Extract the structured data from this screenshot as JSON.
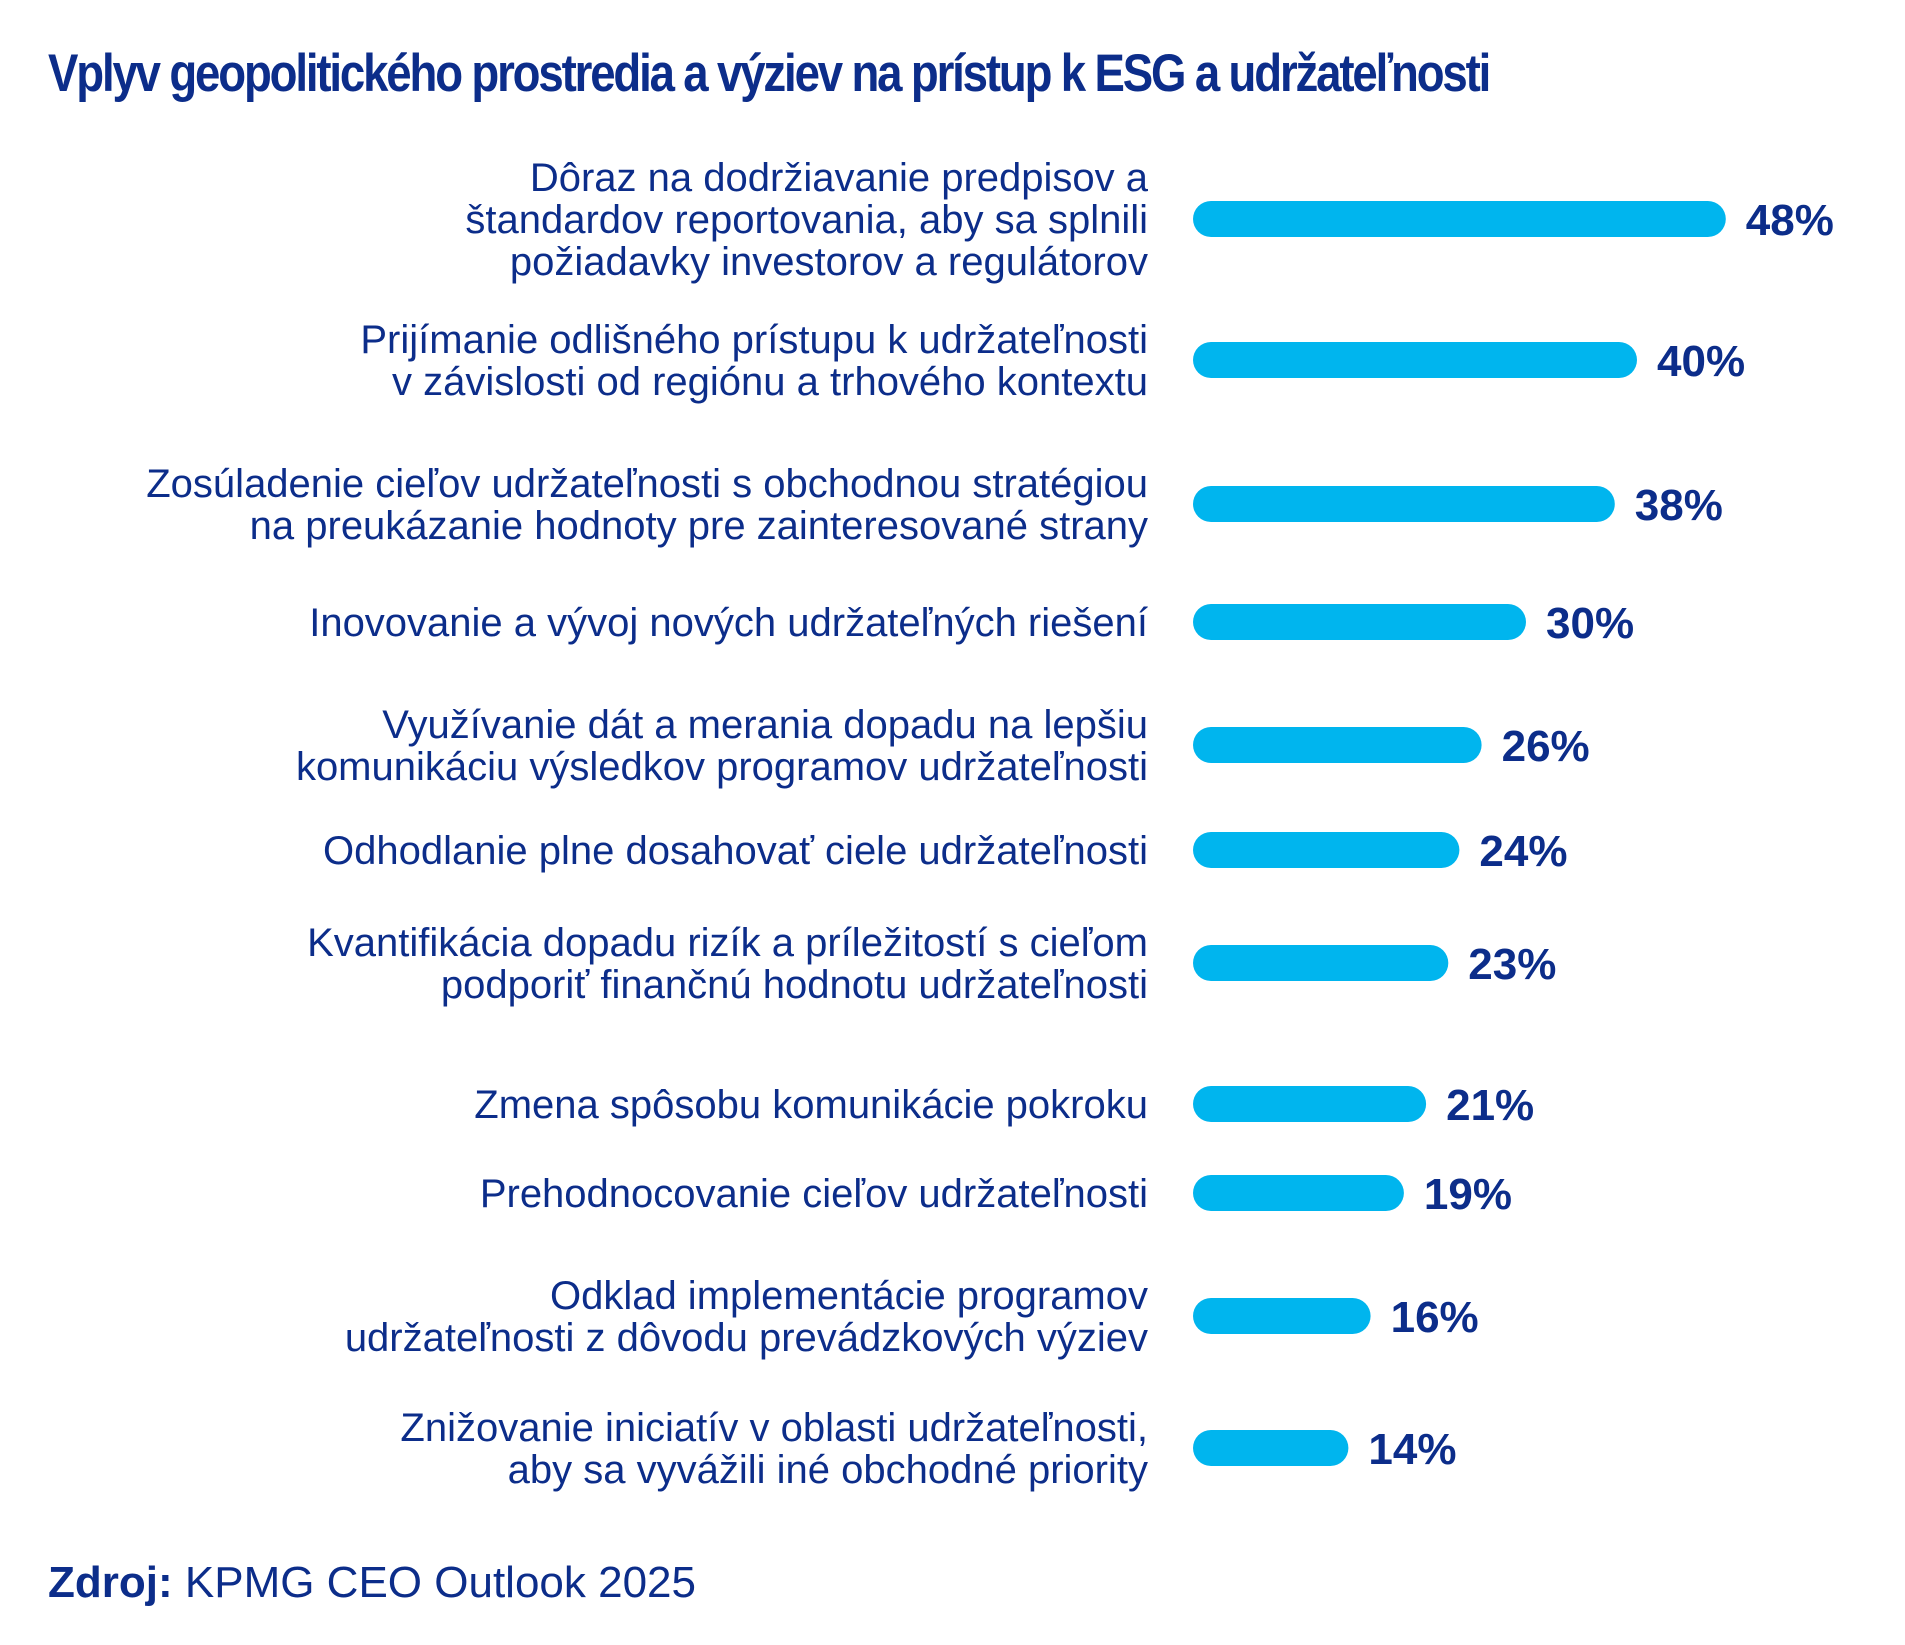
{
  "colors": {
    "bar": "#00b5ee",
    "text": "#0c2d8a",
    "background": "#ffffff"
  },
  "source": {
    "prefix": "Zdroj:",
    "text": "KPMG CEO Outlook 2025"
  },
  "chart_data": {
    "type": "bar",
    "orientation": "horizontal",
    "title": "Vplyv geopolitického prostredia a výziev na prístup k ESG a udržateľnosti",
    "xlabel": "",
    "ylabel": "",
    "grid": false,
    "legend": "none",
    "xlim": [
      0,
      50
    ],
    "categories": [
      [
        "Dôraz na dodržiavanie predpisov a",
        "štandardov reportovania, aby sa splnili",
        "požiadavky investorov a regulátorov"
      ],
      [
        "Prijímanie odlišného prístupu k udržateľnosti",
        "v závislosti od regiónu a trhového kontextu"
      ],
      [
        "Zosúladenie cieľov udržateľnosti s obchodnou stratégiou",
        "na preukázanie hodnoty pre zainteresované strany"
      ],
      [
        "Inovovanie a vývoj nových udržateľných riešení"
      ],
      [
        "Využívanie dát a merania dopadu na lepšiu",
        "komunikáciu výsledkov programov udržateľnosti"
      ],
      [
        "Odhodlanie plne dosahovať ciele udržateľnosti"
      ],
      [
        "Kvantifikácia dopadu rizík a príležitostí s cieľom",
        "podporiť finančnú hodnotu udržateľnosti"
      ],
      [
        "Zmena spôsobu komunikácie pokroku"
      ],
      [
        "Prehodnocovanie cieľov udržateľnosti"
      ],
      [
        "Odklad implementácie programov",
        "udržateľnosti z dôvodu prevádzkových výziev"
      ],
      [
        "Znižovanie iniciatív v oblasti udržateľnosti,",
        "aby sa vyvážili iné obchodné priority"
      ]
    ],
    "values": [
      48,
      40,
      38,
      30,
      26,
      24,
      23,
      21,
      19,
      16,
      14
    ],
    "value_labels": [
      "48%",
      "40%",
      "38%",
      "30%",
      "26%",
      "24%",
      "23%",
      "21%",
      "19%",
      "16%",
      "14%"
    ]
  }
}
